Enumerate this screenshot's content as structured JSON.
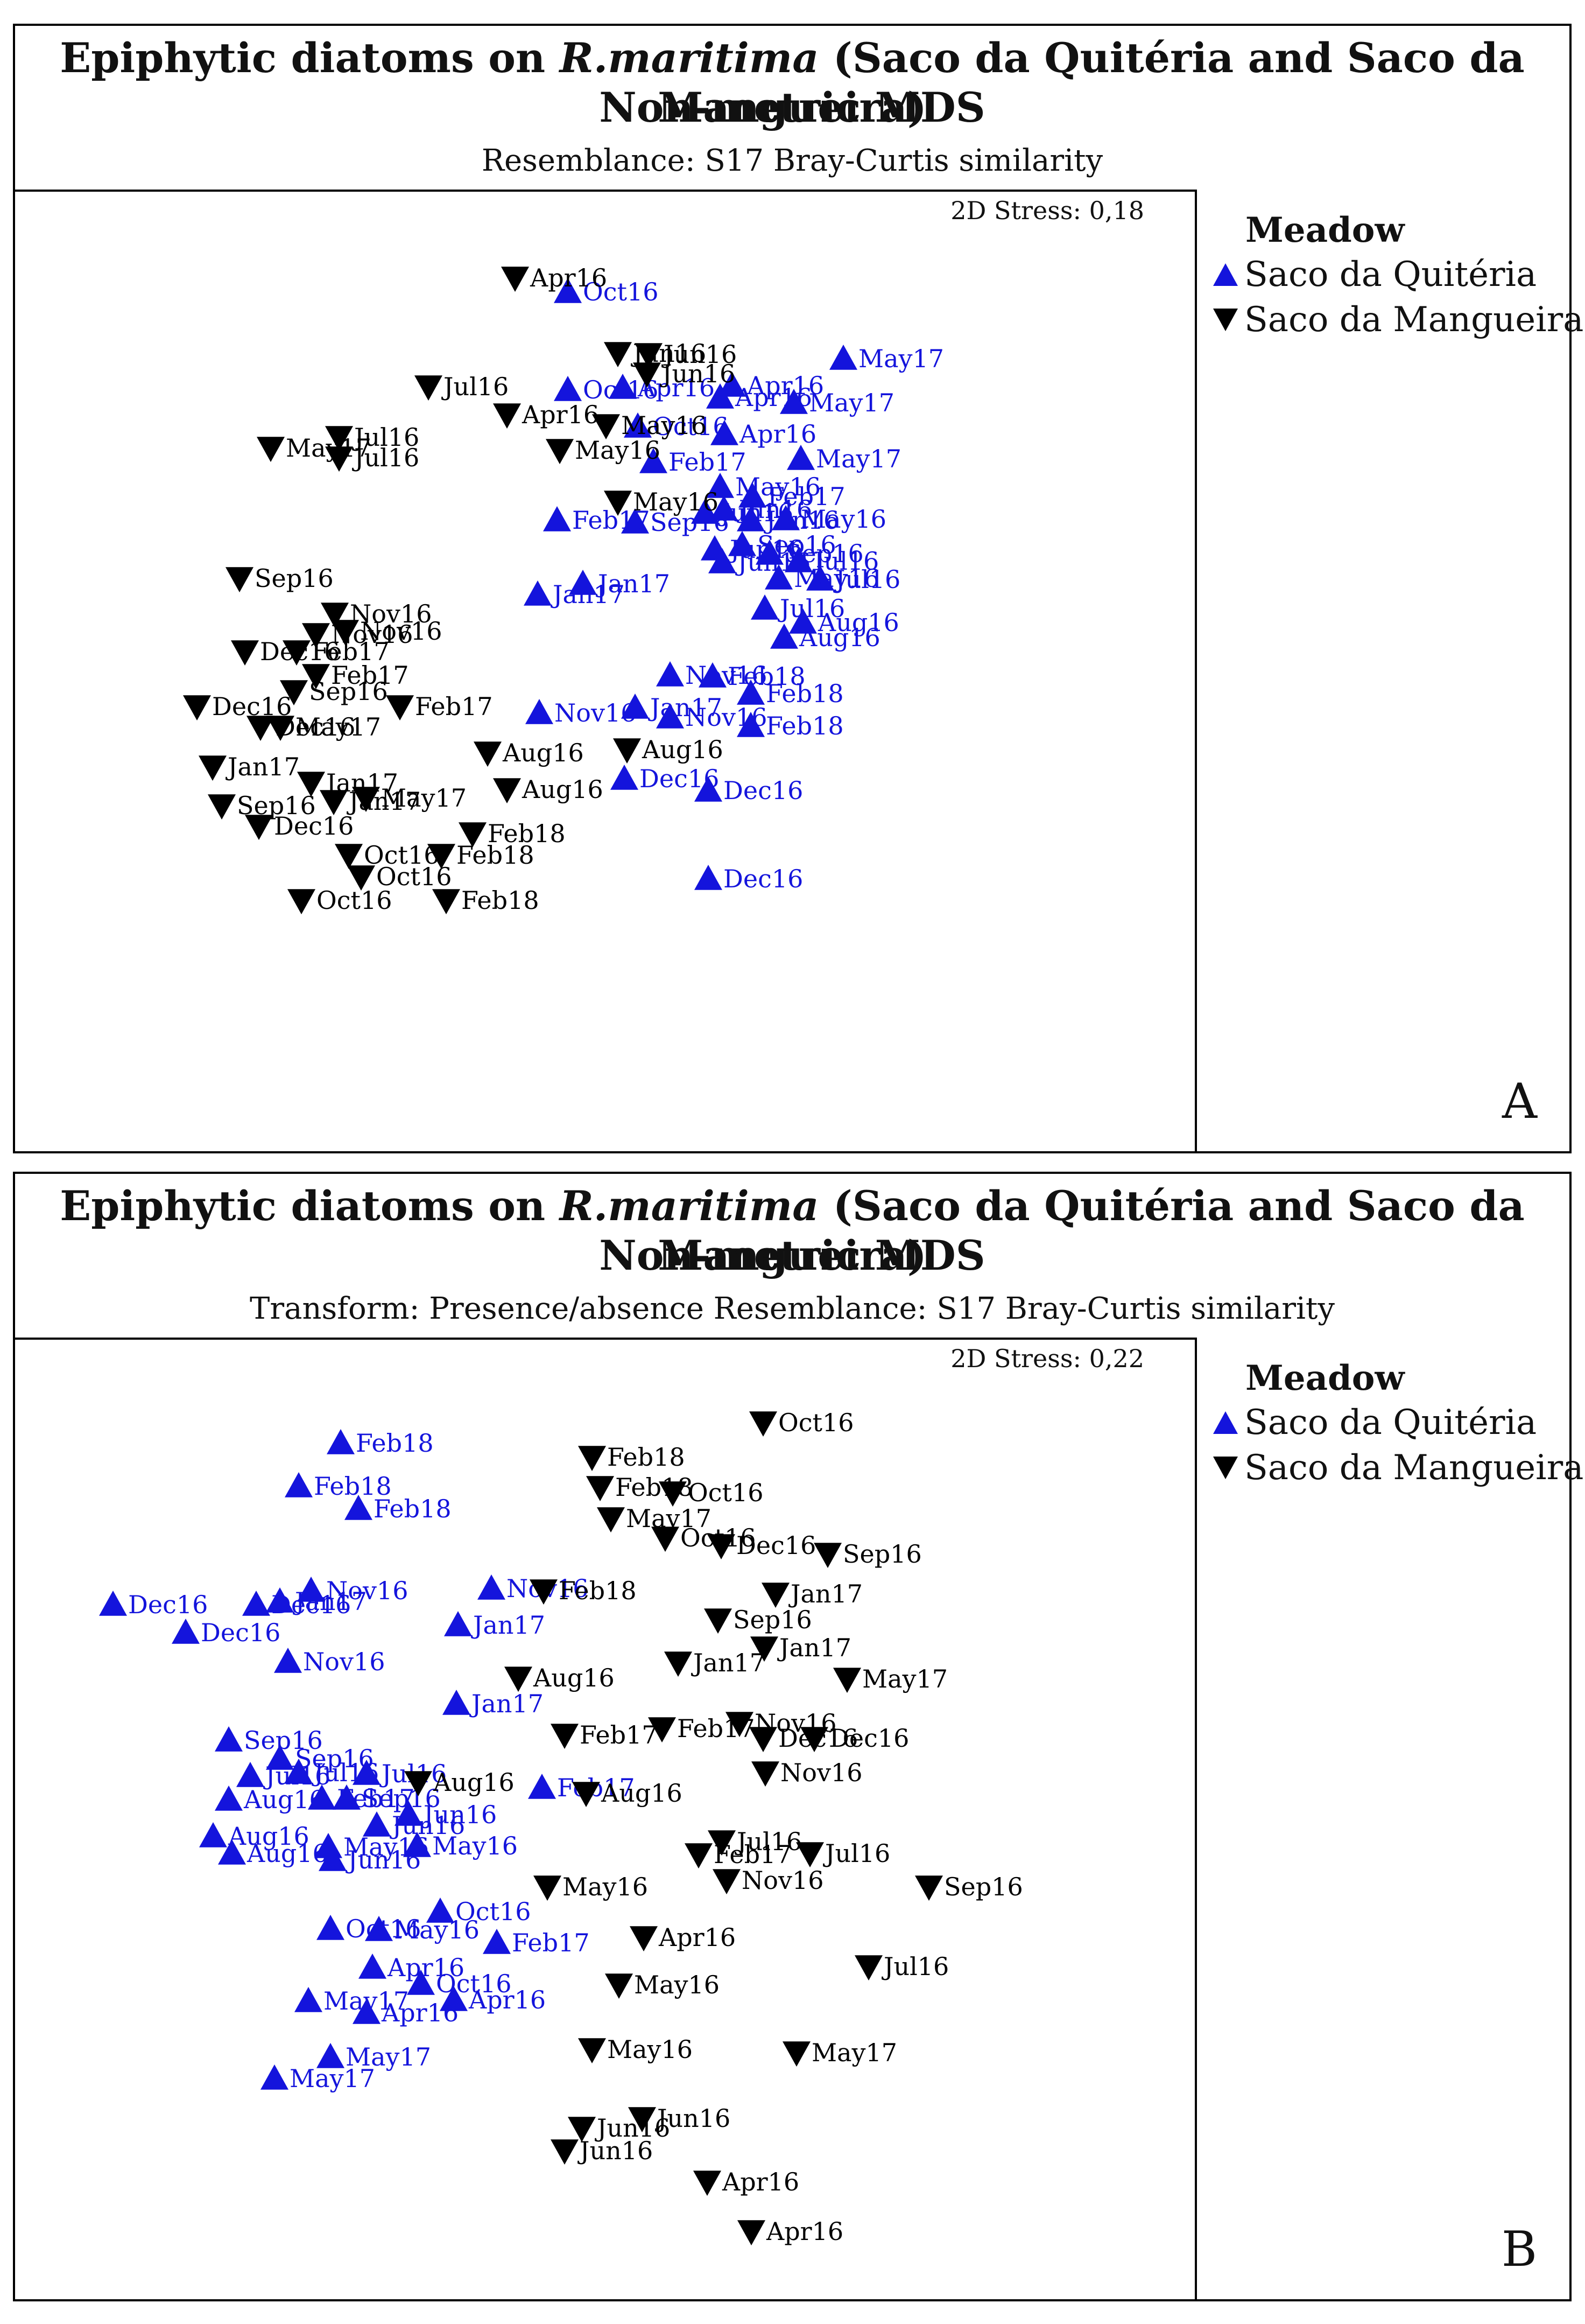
{
  "panels": [
    {
      "title_line1_a": "Epiphytic diatoms on ",
      "title_line1_species": "R.maritima",
      "title_line1_b": " (Saco da Quitéria and Saco da Mangueira)",
      "title_line2": "Non-metric MDS",
      "subtitle": "Resemblance: S17 Bray-Curtis similarity",
      "stress": "2D Stress: 0,18",
      "letter": "A",
      "legend": {
        "title": "Meadow",
        "items": [
          "Saco da Quitéria",
          "Saco da Mangueira"
        ]
      }
    },
    {
      "title_line1_a": "Epiphytic diatoms on ",
      "title_line1_species": "R.maritima",
      "title_line1_b": " (Saco da Quitéria and Saco da Mangueira)",
      "title_line2": "Non-metric MDS",
      "subtitle": "Transform: Presence/absence Resemblance: S17 Bray-Curtis similarity",
      "stress": "2D Stress: 0,22",
      "letter": "B",
      "legend": {
        "title": "Meadow",
        "items": [
          "Saco da Quitéria",
          "Saco da Mangueira"
        ]
      }
    }
  ],
  "colors": {
    "quiteria": "#1414dc",
    "mangueira": "#000000"
  },
  "chart_data": [
    {
      "type": "scatter",
      "title": "Non-metric MDS",
      "stress": 0.18,
      "axes_visible": false,
      "series": [
        {
          "name": "Saco da Quitéria",
          "marker": "triangle-up",
          "color": "#1414dc",
          "points": [
            {
              "label": "Oct16",
              "x": 1055,
              "y": 538
            },
            {
              "label": "Oct16",
              "x": 1055,
              "y": 720
            },
            {
              "label": "Apr16",
              "x": 1157,
              "y": 716
            },
            {
              "label": "Oct16",
              "x": 1185,
              "y": 788
            },
            {
              "label": "Apr16",
              "x": 1360,
              "y": 712
            },
            {
              "label": "Apr16",
              "x": 1338,
              "y": 734
            },
            {
              "label": "Apr16",
              "x": 1346,
              "y": 802
            },
            {
              "label": "May17",
              "x": 1475,
              "y": 744
            },
            {
              "label": "May17",
              "x": 1567,
              "y": 662
            },
            {
              "label": "May17",
              "x": 1488,
              "y": 848
            },
            {
              "label": "Feb17",
              "x": 1214,
              "y": 854
            },
            {
              "label": "May16",
              "x": 1338,
              "y": 900
            },
            {
              "label": "Feb17",
              "x": 1398,
              "y": 918
            },
            {
              "label": "Sep16",
              "x": 1180,
              "y": 966
            },
            {
              "label": "Jun16",
              "x": 1310,
              "y": 948
            },
            {
              "label": "Jun16",
              "x": 1345,
              "y": 942
            },
            {
              "label": "Jun16",
              "x": 1395,
              "y": 962
            },
            {
              "label": "May16",
              "x": 1460,
              "y": 960
            },
            {
              "label": "Feb17",
              "x": 1035,
              "y": 962
            },
            {
              "label": "Sep16",
              "x": 1379,
              "y": 1008
            },
            {
              "label": "Jun16",
              "x": 1328,
              "y": 1016
            },
            {
              "label": "Jun16",
              "x": 1342,
              "y": 1040
            },
            {
              "label": "Sep16",
              "x": 1430,
              "y": 1024
            },
            {
              "label": "Jul16",
              "x": 1484,
              "y": 1038
            },
            {
              "label": "Jul16",
              "x": 1524,
              "y": 1072
            },
            {
              "label": "May16",
              "x": 1447,
              "y": 1070
            },
            {
              "label": "Jan17",
              "x": 1083,
              "y": 1080
            },
            {
              "label": "Jan17",
              "x": 999,
              "y": 1100
            },
            {
              "label": "Jul16",
              "x": 1421,
              "y": 1126
            },
            {
              "label": "Aug16",
              "x": 1492,
              "y": 1152
            },
            {
              "label": "Aug16",
              "x": 1457,
              "y": 1180
            },
            {
              "label": "Nov16",
              "x": 1245,
              "y": 1250
            },
            {
              "label": "Feb18",
              "x": 1324,
              "y": 1252
            },
            {
              "label": "Feb18",
              "x": 1395,
              "y": 1284
            },
            {
              "label": "Nov16",
              "x": 1002,
              "y": 1320
            },
            {
              "label": "Jan17",
              "x": 1180,
              "y": 1310
            },
            {
              "label": "Nov16",
              "x": 1245,
              "y": 1328
            },
            {
              "label": "Feb18",
              "x": 1395,
              "y": 1344
            },
            {
              "label": "Dec16",
              "x": 1160,
              "y": 1442
            },
            {
              "label": "Dec16",
              "x": 1316,
              "y": 1464
            },
            {
              "label": "Dec16",
              "x": 1316,
              "y": 1628
            }
          ]
        },
        {
          "name": "Saco da Mangueira",
          "marker": "triangle-down",
          "color": "#000000",
          "points": [
            {
              "label": "Apr16",
              "x": 957,
              "y": 512
            },
            {
              "label": "Jun16",
              "x": 1148,
              "y": 652
            },
            {
              "label": "Jun16",
              "x": 1205,
              "y": 654
            },
            {
              "label": "Jun16",
              "x": 1202,
              "y": 690
            },
            {
              "label": "Jul16",
              "x": 796,
              "y": 714
            },
            {
              "label": "Jul16",
              "x": 630,
              "y": 808
            },
            {
              "label": "Jul16",
              "x": 630,
              "y": 846
            },
            {
              "label": "May17",
              "x": 503,
              "y": 828
            },
            {
              "label": "Apr16",
              "x": 942,
              "y": 766
            },
            {
              "label": "May16",
              "x": 1126,
              "y": 786
            },
            {
              "label": "May16",
              "x": 1040,
              "y": 832
            },
            {
              "label": "May16",
              "x": 1148,
              "y": 928
            },
            {
              "label": "Sep16",
              "x": 445,
              "y": 1070
            },
            {
              "label": "Nov16",
              "x": 622,
              "y": 1136
            },
            {
              "label": "Nov16",
              "x": 641,
              "y": 1168
            },
            {
              "label": "Nov16",
              "x": 587,
              "y": 1174
            },
            {
              "label": "Dec16",
              "x": 455,
              "y": 1206
            },
            {
              "label": "Feb17",
              "x": 551,
              "y": 1206
            },
            {
              "label": "Feb17",
              "x": 587,
              "y": 1250
            },
            {
              "label": "Sep16",
              "x": 546,
              "y": 1280
            },
            {
              "label": "Feb17",
              "x": 743,
              "y": 1308
            },
            {
              "label": "Dec16",
              "x": 366,
              "y": 1308
            },
            {
              "label": "Dec16",
              "x": 484,
              "y": 1346
            },
            {
              "label": "May17",
              "x": 521,
              "y": 1346
            },
            {
              "label": "Jan17",
              "x": 395,
              "y": 1420
            },
            {
              "label": "Aug16",
              "x": 906,
              "y": 1394
            },
            {
              "label": "Aug16",
              "x": 1165,
              "y": 1388
            },
            {
              "label": "Aug16",
              "x": 942,
              "y": 1462
            },
            {
              "label": "Sep16",
              "x": 412,
              "y": 1492
            },
            {
              "label": "Jan17",
              "x": 578,
              "y": 1450
            },
            {
              "label": "Jan17",
              "x": 620,
              "y": 1484
            },
            {
              "label": "May17",
              "x": 680,
              "y": 1478
            },
            {
              "label": "Dec16",
              "x": 481,
              "y": 1530
            },
            {
              "label": "Oct16",
              "x": 648,
              "y": 1584
            },
            {
              "label": "Oct16",
              "x": 671,
              "y": 1624
            },
            {
              "label": "Oct16",
              "x": 560,
              "y": 1668
            },
            {
              "label": "Feb18",
              "x": 878,
              "y": 1544
            },
            {
              "label": "Feb18",
              "x": 820,
              "y": 1584
            },
            {
              "label": "Feb18",
              "x": 829,
              "y": 1668
            }
          ]
        }
      ]
    },
    {
      "type": "scatter",
      "title": "Non-metric MDS",
      "stress": 0.22,
      "axes_visible": false,
      "series": [
        {
          "name": "Saco da Quitéria",
          "marker": "triangle-up",
          "color": "#1414dc",
          "points": [
            {
              "label": "Feb18",
              "x": 633,
              "y": 2676
            },
            {
              "label": "Feb18",
              "x": 555,
              "y": 2756
            },
            {
              "label": "Feb18",
              "x": 666,
              "y": 2798
            },
            {
              "label": "Dec16",
              "x": 210,
              "y": 2976
            },
            {
              "label": "Dec16",
              "x": 476,
              "y": 2976
            },
            {
              "label": "Jan17",
              "x": 520,
              "y": 2970
            },
            {
              "label": "Nov16",
              "x": 578,
              "y": 2950
            },
            {
              "label": "Dec16",
              "x": 345,
              "y": 3028
            },
            {
              "label": "Nov16",
              "x": 535,
              "y": 3082
            },
            {
              "label": "Nov16",
              "x": 913,
              "y": 2946
            },
            {
              "label": "Jan17",
              "x": 851,
              "y": 3014
            },
            {
              "label": "Jan17",
              "x": 848,
              "y": 3160
            },
            {
              "label": "Sep16",
              "x": 425,
              "y": 3228
            },
            {
              "label": "Sep16",
              "x": 520,
              "y": 3262
            },
            {
              "label": "Jul16",
              "x": 465,
              "y": 3294
            },
            {
              "label": "Jul16",
              "x": 555,
              "y": 3288
            },
            {
              "label": "Jul16",
              "x": 681,
              "y": 3290
            },
            {
              "label": "Aug16",
              "x": 425,
              "y": 3338
            },
            {
              "label": "Feb17",
              "x": 598,
              "y": 3336
            },
            {
              "label": "Sep16",
              "x": 644,
              "y": 3336
            },
            {
              "label": "Jun16",
              "x": 759,
              "y": 3366
            },
            {
              "label": "Feb17",
              "x": 1007,
              "y": 3316
            },
            {
              "label": "Aug16",
              "x": 396,
              "y": 3406
            },
            {
              "label": "Aug16",
              "x": 431,
              "y": 3438
            },
            {
              "label": "May16",
              "x": 610,
              "y": 3426
            },
            {
              "label": "Jun16",
              "x": 700,
              "y": 3386
            },
            {
              "label": "May16",
              "x": 775,
              "y": 3424
            },
            {
              "label": "Jun16",
              "x": 618,
              "y": 3450
            },
            {
              "label": "Oct16",
              "x": 818,
              "y": 3546
            },
            {
              "label": "Oct16",
              "x": 614,
              "y": 3578
            },
            {
              "label": "May16",
              "x": 704,
              "y": 3580
            },
            {
              "label": "Feb17",
              "x": 923,
              "y": 3604
            },
            {
              "label": "Apr16",
              "x": 692,
              "y": 3650
            },
            {
              "label": "Oct16",
              "x": 782,
              "y": 3680
            },
            {
              "label": "Apr16",
              "x": 843,
              "y": 3710
            },
            {
              "label": "May17",
              "x": 573,
              "y": 3712
            },
            {
              "label": "Apr16",
              "x": 681,
              "y": 3734
            },
            {
              "label": "May17",
              "x": 614,
              "y": 3816
            },
            {
              "label": "May17",
              "x": 510,
              "y": 3856
            }
          ]
        },
        {
          "name": "Saco da Mangueira",
          "marker": "triangle-down",
          "color": "#000000",
          "points": [
            {
              "label": "Oct16",
              "x": 1418,
              "y": 2638
            },
            {
              "label": "Feb18",
              "x": 1100,
              "y": 2702
            },
            {
              "label": "Feb18",
              "x": 1115,
              "y": 2758
            },
            {
              "label": "May17",
              "x": 1135,
              "y": 2816
            },
            {
              "label": "Oct16",
              "x": 1250,
              "y": 2768
            },
            {
              "label": "Oct16",
              "x": 1236,
              "y": 2852
            },
            {
              "label": "Dec16",
              "x": 1340,
              "y": 2866
            },
            {
              "label": "Sep16",
              "x": 1538,
              "y": 2882
            },
            {
              "label": "Feb18",
              "x": 1010,
              "y": 2950
            },
            {
              "label": "Jan17",
              "x": 1441,
              "y": 2956
            },
            {
              "label": "Sep16",
              "x": 1334,
              "y": 3004
            },
            {
              "label": "Jan17",
              "x": 1420,
              "y": 3056
            },
            {
              "label": "Jan17",
              "x": 1260,
              "y": 3084
            },
            {
              "label": "May17",
              "x": 1574,
              "y": 3114
            },
            {
              "label": "Aug16",
              "x": 963,
              "y": 3112
            },
            {
              "label": "Nov16",
              "x": 1374,
              "y": 3196
            },
            {
              "label": "Dec16",
              "x": 1418,
              "y": 3224
            },
            {
              "label": "Dec16",
              "x": 1513,
              "y": 3224
            },
            {
              "label": "Feb17",
              "x": 1049,
              "y": 3218
            },
            {
              "label": "Feb17",
              "x": 1230,
              "y": 3206
            },
            {
              "label": "Nov16",
              "x": 1422,
              "y": 3288
            },
            {
              "label": "Aug16",
              "x": 777,
              "y": 3306
            },
            {
              "label": "Aug16",
              "x": 1089,
              "y": 3326
            },
            {
              "label": "Jul16",
              "x": 1341,
              "y": 3416
            },
            {
              "label": "Jul16",
              "x": 1505,
              "y": 3438
            },
            {
              "label": "Feb17",
              "x": 1298,
              "y": 3440
            },
            {
              "label": "Nov16",
              "x": 1350,
              "y": 3488
            },
            {
              "label": "May16",
              "x": 1017,
              "y": 3500
            },
            {
              "label": "Sep16",
              "x": 1726,
              "y": 3500
            },
            {
              "label": "Apr16",
              "x": 1196,
              "y": 3594
            },
            {
              "label": "Jul16",
              "x": 1614,
              "y": 3648
            },
            {
              "label": "May16",
              "x": 1150,
              "y": 3682
            },
            {
              "label": "May17",
              "x": 1480,
              "y": 3808
            },
            {
              "label": "May16",
              "x": 1100,
              "y": 3802
            },
            {
              "label": "Jun16",
              "x": 1081,
              "y": 3948
            },
            {
              "label": "Jun16",
              "x": 1193,
              "y": 3930
            },
            {
              "label": "Jun16",
              "x": 1049,
              "y": 3990
            },
            {
              "label": "Apr16",
              "x": 1314,
              "y": 4048
            },
            {
              "label": "Apr16",
              "x": 1396,
              "y": 4140
            }
          ]
        }
      ]
    }
  ]
}
